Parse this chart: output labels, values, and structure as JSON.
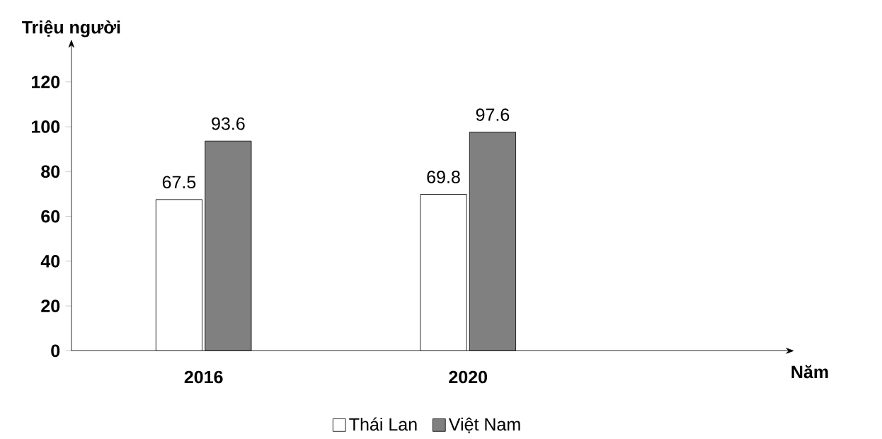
{
  "chart_data": {
    "type": "bar",
    "ylabel": "Triệu người",
    "xlabel": "Năm",
    "categories": [
      "2016",
      "2020"
    ],
    "series": [
      {
        "name": "Thái Lan",
        "color": "#ffffff",
        "values": [
          67.5,
          69.8
        ]
      },
      {
        "name": "Việt Nam",
        "color": "#808080",
        "values": [
          93.6,
          97.6
        ]
      }
    ],
    "ylim": [
      0,
      135
    ],
    "yticks": [
      0,
      20,
      40,
      60,
      80,
      100,
      120
    ],
    "data_labels": true,
    "grid": false,
    "legend": "bottom"
  }
}
